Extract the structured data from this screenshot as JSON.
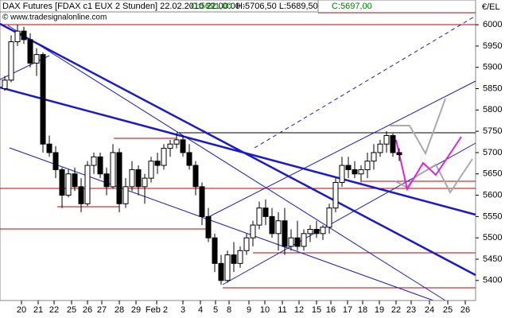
{
  "chart_data": {
    "type": "candlestick",
    "title": "DAX Futures [FDAX c1 EUX  2 Stunden] 22.02.2010 22:00:00 -",
    "open_label": "O:5691,00",
    "high_low_label": "H:5706,50 L:5689,50",
    "close_label": "C:5697,00",
    "source": "© www.tradesignalonline.com",
    "y_label": "€/EL",
    "up_color": "#ffffff",
    "down_color": "#000000",
    "xlim": [
      0,
      59.8
    ],
    "ylim": [
      5353,
      6058
    ],
    "yticks": [
      5400,
      5450,
      5500,
      5550,
      5600,
      5650,
      5700,
      5750,
      5800,
      5850,
      5900,
      5950,
      6000
    ],
    "xticks": [
      {
        "value": 2.7,
        "label": "20"
      },
      {
        "value": 4.8,
        "label": "21"
      },
      {
        "value": 6.8,
        "label": "22"
      },
      {
        "value": 9.0,
        "label": "25"
      },
      {
        "value": 11.0,
        "label": "26"
      },
      {
        "value": 12.8,
        "label": "27"
      },
      {
        "value": 15.0,
        "label": "28"
      },
      {
        "value": 17.1,
        "label": "29"
      },
      {
        "value": 19.7,
        "label": "Feb 2"
      },
      {
        "value": 23.0,
        "label": "3"
      },
      {
        "value": 25.2,
        "label": "4"
      },
      {
        "value": 27.1,
        "label": "5"
      },
      {
        "value": 28.8,
        "label": "8"
      },
      {
        "value": 31.3,
        "label": "9"
      },
      {
        "value": 33.3,
        "label": "10"
      },
      {
        "value": 35.5,
        "label": "11"
      },
      {
        "value": 37.6,
        "label": "12"
      },
      {
        "value": 39.8,
        "label": "15"
      },
      {
        "value": 41.6,
        "label": "16"
      },
      {
        "value": 43.7,
        "label": "17"
      },
      {
        "value": 45.6,
        "label": "18"
      },
      {
        "value": 47.7,
        "label": "19"
      },
      {
        "value": 49.8,
        "label": "22"
      },
      {
        "value": 51.7,
        "label": "23"
      },
      {
        "value": 54.0,
        "label": "24"
      },
      {
        "value": 56.3,
        "label": "25"
      },
      {
        "value": 58.5,
        "label": "26"
      }
    ],
    "x": [
      0.6,
      1.4,
      2.2,
      3.0,
      3.8,
      4.6,
      5.4,
      6.2,
      7.0,
      7.8,
      8.6,
      9.4,
      10.2,
      11.0,
      11.8,
      12.6,
      13.4,
      14.2,
      15.0,
      15.8,
      16.6,
      17.4,
      18.2,
      19.0,
      19.8,
      20.6,
      21.4,
      22.2,
      23.0,
      23.8,
      24.6,
      25.4,
      26.2,
      27.0,
      27.8,
      28.6,
      29.4,
      30.2,
      31.0,
      31.8,
      32.6,
      33.4,
      34.2,
      35.0,
      35.8,
      36.6,
      37.4,
      38.2,
      39.0,
      39.8,
      40.6,
      41.4,
      42.2,
      43.0,
      43.8,
      44.6,
      45.4,
      46.2,
      47.0,
      47.8,
      48.6,
      49.4,
      50.2
    ],
    "open": [
      5850,
      5870,
      5960,
      5985,
      5965,
      5910,
      5930,
      5720,
      5700,
      5660,
      5600,
      5650,
      5620,
      5580,
      5670,
      5690,
      5650,
      5620,
      5700,
      5580,
      5620,
      5660,
      5620,
      5640,
      5680,
      5670,
      5710,
      5720,
      5730,
      5700,
      5670,
      5620,
      5550,
      5500,
      5440,
      5400,
      5460,
      5440,
      5470,
      5500,
      5530,
      5570,
      5550,
      5510,
      5540,
      5480,
      5500,
      5480,
      5510,
      5520,
      5510,
      5525,
      5570,
      5630,
      5670,
      5660,
      5650,
      5660,
      5680,
      5700,
      5720,
      5740,
      5700
    ],
    "high": [
      5880,
      5975,
      6000,
      5995,
      5980,
      5945,
      5935,
      5740,
      5715,
      5665,
      5660,
      5665,
      5640,
      5680,
      5700,
      5700,
      5665,
      5720,
      5710,
      5640,
      5680,
      5670,
      5650,
      5690,
      5700,
      5720,
      5730,
      5745,
      5740,
      5720,
      5680,
      5630,
      5570,
      5510,
      5460,
      5470,
      5490,
      5480,
      5510,
      5540,
      5585,
      5590,
      5570,
      5560,
      5570,
      5520,
      5540,
      5520,
      5530,
      5540,
      5530,
      5580,
      5640,
      5690,
      5690,
      5680,
      5670,
      5700,
      5720,
      5730,
      5750,
      5745,
      5710
    ],
    "low": [
      5845,
      5865,
      5950,
      5955,
      5900,
      5880,
      5700,
      5690,
      5640,
      5570,
      5595,
      5610,
      5560,
      5575,
      5650,
      5640,
      5600,
      5615,
      5560,
      5570,
      5610,
      5600,
      5580,
      5630,
      5650,
      5660,
      5690,
      5710,
      5690,
      5660,
      5600,
      5530,
      5490,
      5420,
      5390,
      5395,
      5420,
      5430,
      5460,
      5480,
      5520,
      5530,
      5500,
      5470,
      5460,
      5470,
      5470,
      5470,
      5490,
      5500,
      5495,
      5510,
      5560,
      5620,
      5640,
      5640,
      5630,
      5640,
      5660,
      5690,
      5700,
      5690,
      5680
    ],
    "close": [
      5870,
      5960,
      5985,
      5965,
      5910,
      5930,
      5720,
      5700,
      5660,
      5600,
      5650,
      5620,
      5580,
      5670,
      5690,
      5650,
      5620,
      5700,
      5580,
      5620,
      5660,
      5620,
      5640,
      5680,
      5670,
      5710,
      5720,
      5730,
      5700,
      5670,
      5620,
      5550,
      5500,
      5440,
      5400,
      5460,
      5440,
      5470,
      5500,
      5530,
      5570,
      5550,
      5510,
      5540,
      5480,
      5500,
      5480,
      5510,
      5520,
      5510,
      5525,
      5570,
      5630,
      5670,
      5660,
      5650,
      5660,
      5680,
      5700,
      5720,
      5740,
      5700,
      5695
    ]
  }
}
